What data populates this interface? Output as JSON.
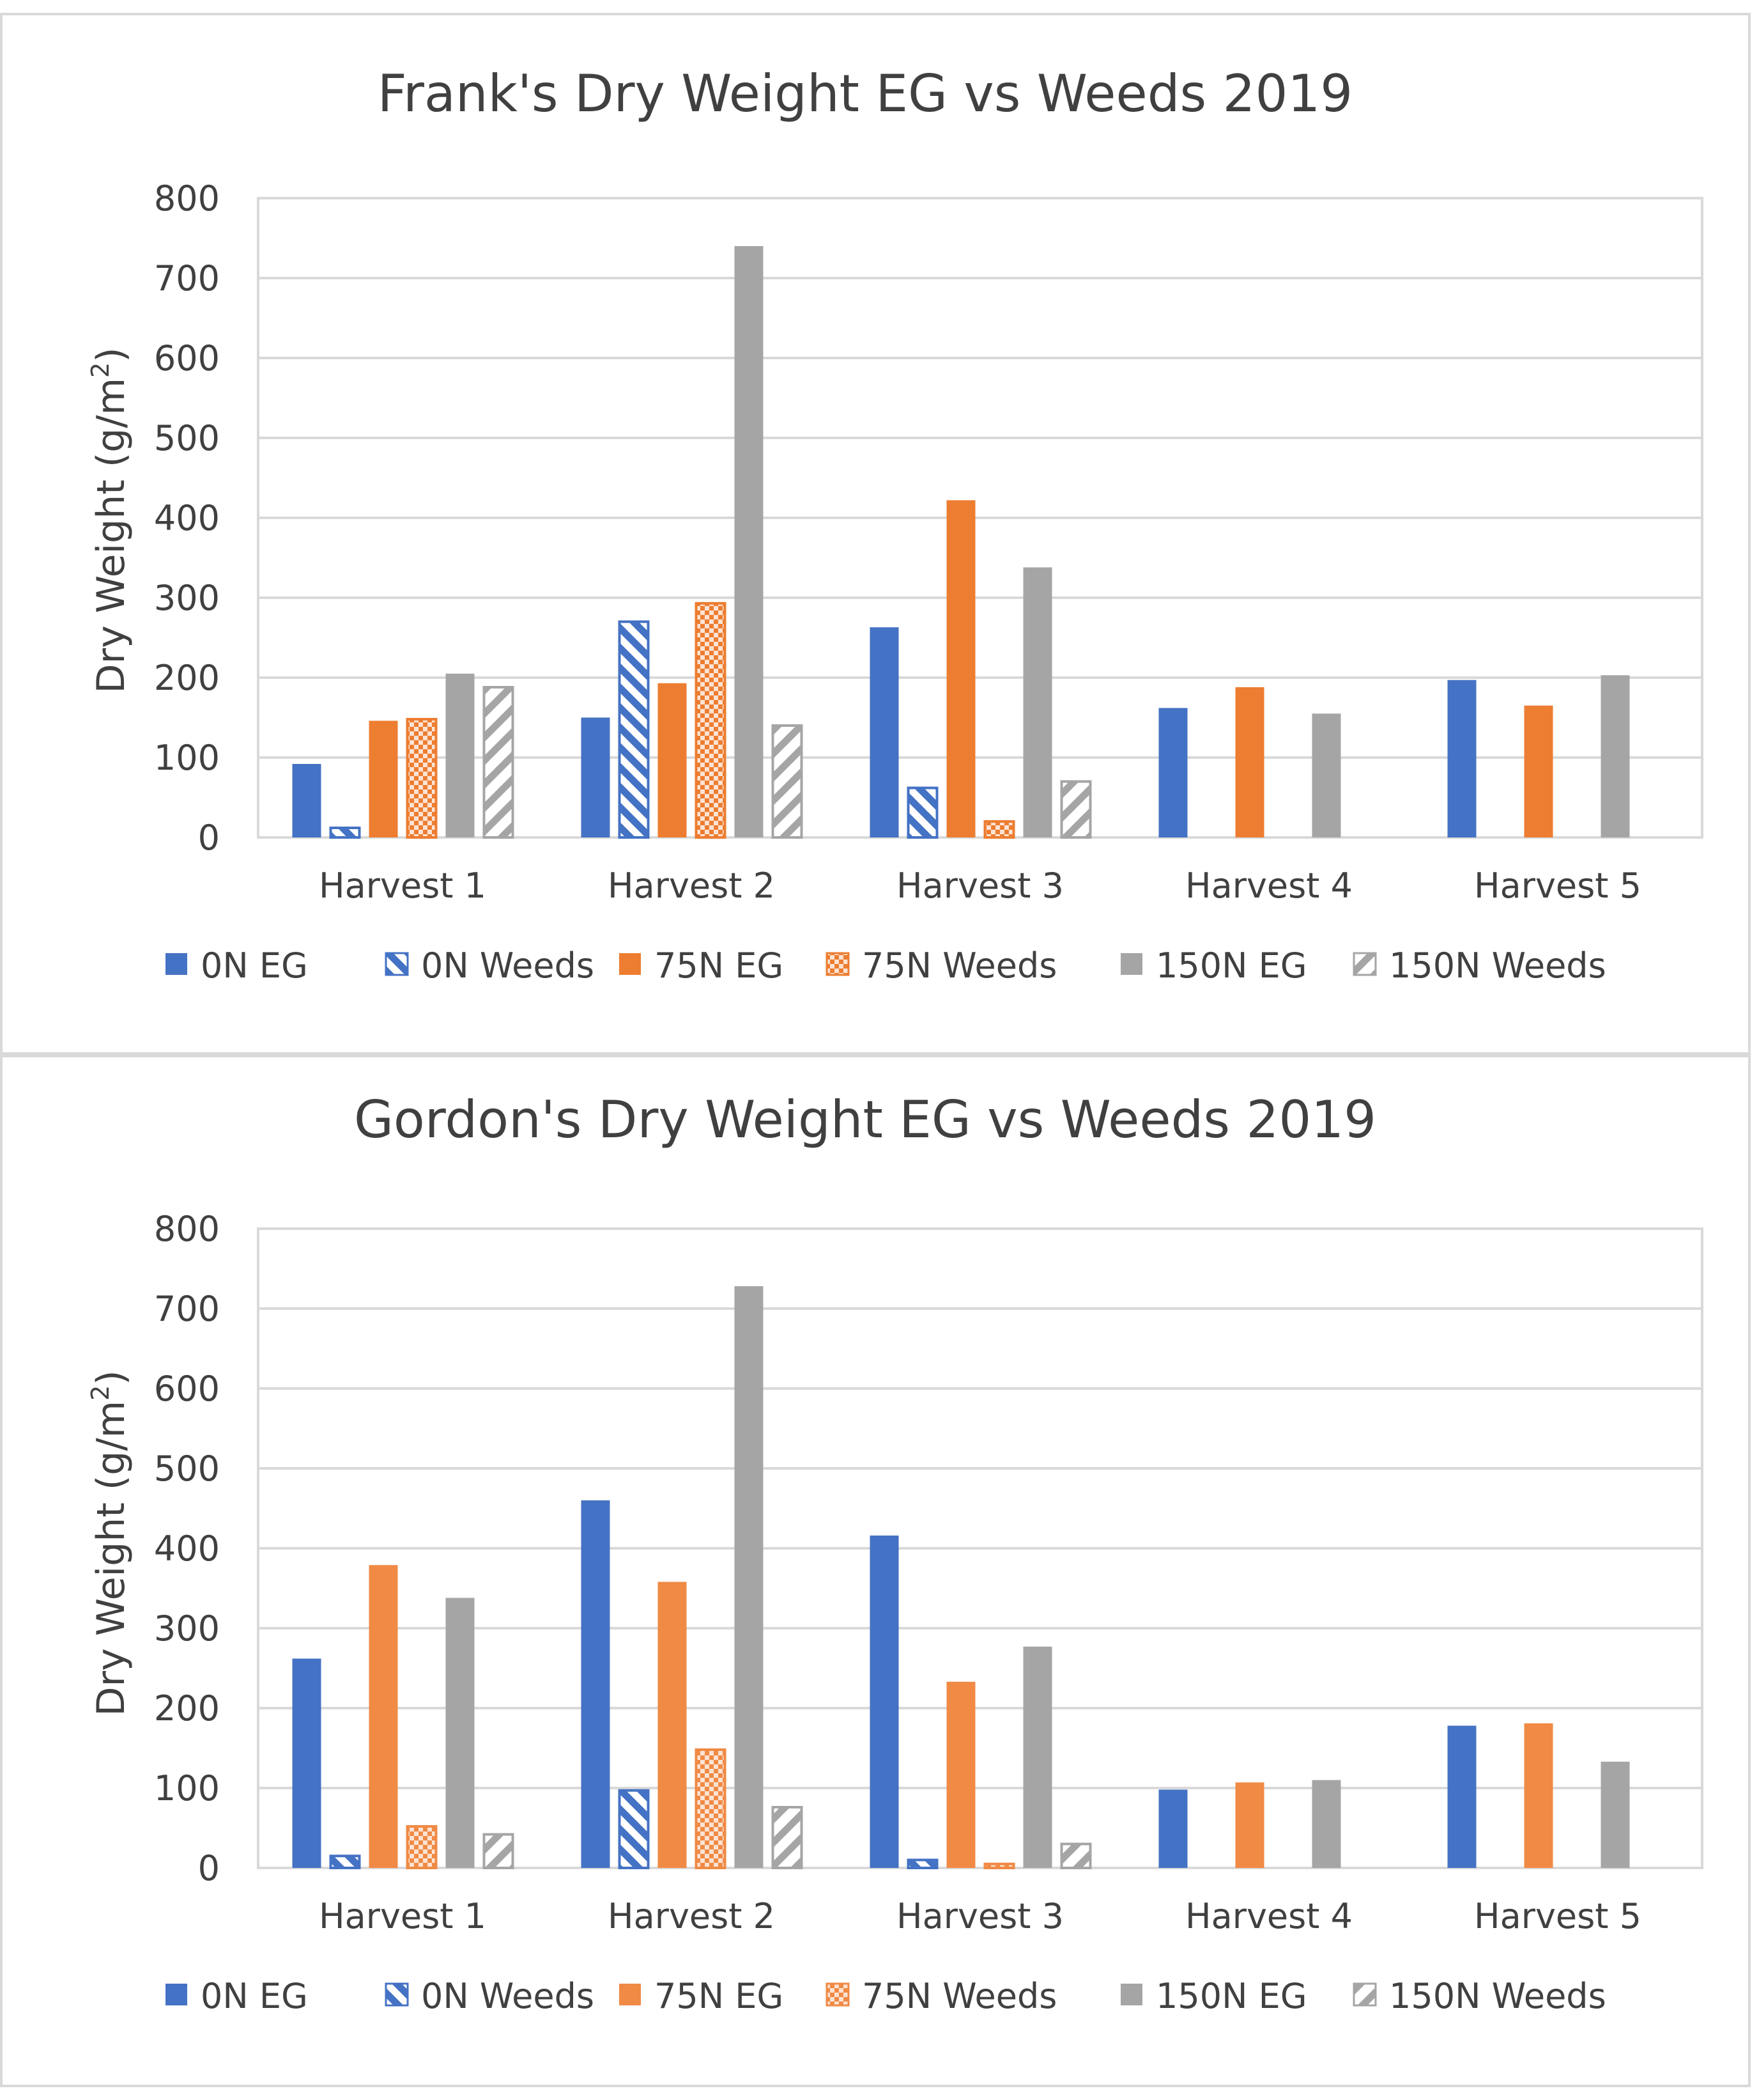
{
  "chart_data": [
    {
      "type": "bar",
      "title": "Frank's Dry Weight EG vs Weeds 2019",
      "xlabel": "",
      "ylabel": "Dry Weight (g/m",
      "ylabel_sup": "2",
      "ylabel_end": ")",
      "ylim": [
        0,
        800
      ],
      "yticks": [
        0,
        100,
        200,
        300,
        400,
        500,
        600,
        700,
        800
      ],
      "grid": true,
      "legend_position": "bottom",
      "categories": [
        "Harvest 1",
        "Harvest 2",
        "Harvest 3",
        "Harvest 4",
        "Harvest 5"
      ],
      "series": [
        {
          "name": "0N EG",
          "color": "#4472c4",
          "pattern": "solid",
          "values": [
            92,
            150,
            263,
            162,
            197
          ]
        },
        {
          "name": "0N Weeds",
          "color": "#4472c4",
          "pattern": "diagonal",
          "values": [
            12,
            270,
            62,
            null,
            null
          ]
        },
        {
          "name": "75N EG",
          "color": "#ed7d31",
          "pattern": "solid",
          "values": [
            146,
            193,
            422,
            188,
            165
          ]
        },
        {
          "name": "75N Weeds",
          "color": "#ed7d31",
          "pattern": "checker",
          "values": [
            148,
            293,
            20,
            null,
            null
          ]
        },
        {
          "name": "150N EG",
          "color": "#a5a5a5",
          "pattern": "solid",
          "values": [
            205,
            740,
            338,
            155,
            203
          ]
        },
        {
          "name": "150N Weeds",
          "color": "#a5a5a5",
          "pattern": "diagonal-reverse",
          "values": [
            188,
            140,
            70,
            null,
            null
          ]
        }
      ]
    },
    {
      "type": "bar",
      "title": "Gordon's Dry Weight EG vs Weeds 2019",
      "xlabel": "",
      "ylabel": "Dry Weight (g/m",
      "ylabel_sup": "2",
      "ylabel_end": ")",
      "ylim": [
        0,
        800
      ],
      "yticks": [
        0,
        100,
        200,
        300,
        400,
        500,
        600,
        700,
        800
      ],
      "grid": true,
      "legend_position": "bottom",
      "categories": [
        "Harvest 1",
        "Harvest 2",
        "Harvest 3",
        "Harvest 4",
        "Harvest 5"
      ],
      "series": [
        {
          "name": "0N EG",
          "color": "#4472c4",
          "pattern": "solid",
          "values": [
            262,
            460,
            416,
            98,
            178
          ]
        },
        {
          "name": "0N Weeds",
          "color": "#4472c4",
          "pattern": "diagonal",
          "values": [
            15,
            97,
            10,
            null,
            null
          ]
        },
        {
          "name": "75N EG",
          "color": "#f08a45",
          "pattern": "solid",
          "values": [
            379,
            358,
            233,
            107,
            181
          ]
        },
        {
          "name": "75N Weeds",
          "color": "#f08a45",
          "pattern": "checker",
          "values": [
            52,
            148,
            5,
            null,
            null
          ]
        },
        {
          "name": "150N EG",
          "color": "#a5a5a5",
          "pattern": "solid",
          "values": [
            338,
            728,
            277,
            110,
            133
          ]
        },
        {
          "name": "150N Weeds",
          "color": "#a5a5a5",
          "pattern": "diagonal-reverse",
          "values": [
            42,
            76,
            30,
            null,
            null
          ]
        }
      ]
    }
  ]
}
